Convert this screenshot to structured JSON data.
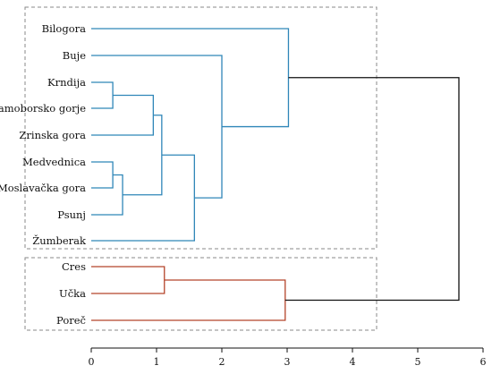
{
  "chart_data": {
    "type": "dendrogram",
    "xlim": [
      0,
      6
    ],
    "x_ticks": [
      "0",
      "1",
      "2",
      "3",
      "4",
      "5",
      "6"
    ],
    "leaves": [
      "Bilogora",
      "Buje",
      "Krndija",
      "Samoborsko gorje",
      "Zrinska gora",
      "Medvednica",
      "Moslavačka gora",
      "Psunj",
      "Žumberak",
      "Cres",
      "Učka",
      "Poreč"
    ],
    "merges": [
      {
        "id": "m1",
        "children": [
          "Krndija",
          "Samoborsko gorje"
        ],
        "height": 0.33
      },
      {
        "id": "m2",
        "children": [
          "Medvednica",
          "Moslavačka gora"
        ],
        "height": 0.33
      },
      {
        "id": "m3",
        "children": [
          "m2",
          "Psunj"
        ],
        "height": 0.48
      },
      {
        "id": "m4",
        "children": [
          "m1",
          "Zrinska gora"
        ],
        "height": 0.95
      },
      {
        "id": "m5",
        "children": [
          "m4",
          "m3"
        ],
        "height": 1.08
      },
      {
        "id": "m6",
        "children": [
          "m5",
          "Žumberak"
        ],
        "height": 1.58
      },
      {
        "id": "m7",
        "children": [
          "Buje",
          "m6"
        ],
        "height": 2.0
      },
      {
        "id": "m8",
        "children": [
          "Bilogora",
          "m7"
        ],
        "height": 3.02
      },
      {
        "id": "m9",
        "children": [
          "Cres",
          "Učka"
        ],
        "height": 1.12
      },
      {
        "id": "m10",
        "children": [
          "m9",
          "Poreč"
        ],
        "height": 2.97
      },
      {
        "id": "m11",
        "children": [
          "m8",
          "m10"
        ],
        "height": 5.63
      }
    ],
    "cluster_colors": {
      "cluster1": "#2f86b8",
      "cluster2": "#b5442a",
      "root": "#111111",
      "box": "#8a8a8a"
    },
    "clusters": [
      [
        "Bilogora",
        "Buje",
        "Krndija",
        "Samoborsko gorje",
        "Zrinska gora",
        "Medvednica",
        "Moslavačka gora",
        "Psunj",
        "Žumberak"
      ],
      [
        "Cres",
        "Učka",
        "Poreč"
      ]
    ]
  }
}
